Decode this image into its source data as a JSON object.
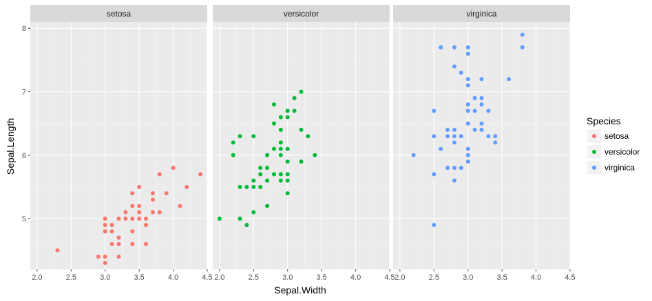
{
  "chart_data": {
    "type": "scatter",
    "facet_by": "Species",
    "xlabel": "Sepal.Width",
    "ylabel": "Sepal.Length",
    "xlim": [
      1.9,
      4.5
    ],
    "ylim": [
      4.2,
      8.1
    ],
    "x_ticks": [
      "2.0",
      "2.5",
      "3.0",
      "3.5",
      "4.0",
      "4.5"
    ],
    "x_tick_values": [
      2.0,
      2.5,
      3.0,
      3.5,
      4.0,
      4.5
    ],
    "y_ticks": [
      "5",
      "6",
      "7",
      "8"
    ],
    "y_tick_values": [
      5,
      6,
      7,
      8
    ],
    "grid": true,
    "legend": {
      "title": "Species",
      "position": "right",
      "entries": [
        {
          "label": "setosa",
          "color": "#F8766D"
        },
        {
          "label": "versicolor",
          "color": "#00BA38"
        },
        {
          "label": "virginica",
          "color": "#619CFF"
        }
      ]
    },
    "panels": [
      {
        "name": "setosa",
        "color": "#F8766D",
        "points": [
          [
            2.3,
            4.5
          ],
          [
            2.9,
            4.4
          ],
          [
            3.0,
            4.3
          ],
          [
            3.0,
            4.4
          ],
          [
            3.0,
            4.8
          ],
          [
            3.0,
            4.9
          ],
          [
            3.0,
            5.0
          ],
          [
            3.1,
            4.6
          ],
          [
            3.1,
            4.8
          ],
          [
            3.1,
            4.9
          ],
          [
            3.2,
            4.4
          ],
          [
            3.2,
            4.6
          ],
          [
            3.2,
            4.7
          ],
          [
            3.2,
            5.0
          ],
          [
            3.3,
            5.0
          ],
          [
            3.3,
            5.1
          ],
          [
            3.4,
            4.6
          ],
          [
            3.4,
            4.8
          ],
          [
            3.4,
            5.0
          ],
          [
            3.4,
            5.2
          ],
          [
            3.4,
            5.4
          ],
          [
            3.5,
            5.0
          ],
          [
            3.5,
            5.1
          ],
          [
            3.5,
            5.2
          ],
          [
            3.5,
            5.5
          ],
          [
            3.6,
            4.6
          ],
          [
            3.6,
            4.9
          ],
          [
            3.6,
            5.0
          ],
          [
            3.7,
            5.1
          ],
          [
            3.7,
            5.3
          ],
          [
            3.7,
            5.4
          ],
          [
            3.8,
            5.1
          ],
          [
            3.8,
            5.7
          ],
          [
            3.9,
            5.4
          ],
          [
            4.0,
            5.8
          ],
          [
            4.1,
            5.2
          ],
          [
            4.2,
            5.5
          ],
          [
            4.4,
            5.7
          ]
        ]
      },
      {
        "name": "versicolor",
        "color": "#00BA38",
        "points": [
          [
            2.0,
            5.0
          ],
          [
            2.2,
            6.0
          ],
          [
            2.2,
            6.2
          ],
          [
            2.3,
            5.0
          ],
          [
            2.3,
            5.5
          ],
          [
            2.3,
            6.3
          ],
          [
            2.4,
            4.9
          ],
          [
            2.4,
            5.5
          ],
          [
            2.5,
            5.1
          ],
          [
            2.5,
            5.5
          ],
          [
            2.5,
            5.6
          ],
          [
            2.5,
            6.3
          ],
          [
            2.6,
            5.5
          ],
          [
            2.6,
            5.7
          ],
          [
            2.6,
            5.8
          ],
          [
            2.7,
            5.2
          ],
          [
            2.7,
            5.6
          ],
          [
            2.7,
            5.8
          ],
          [
            2.7,
            6.0
          ],
          [
            2.8,
            5.7
          ],
          [
            2.8,
            6.1
          ],
          [
            2.8,
            6.5
          ],
          [
            2.8,
            6.8
          ],
          [
            2.9,
            5.6
          ],
          [
            2.9,
            5.7
          ],
          [
            2.9,
            6.0
          ],
          [
            2.9,
            6.1
          ],
          [
            2.9,
            6.2
          ],
          [
            2.9,
            6.4
          ],
          [
            2.9,
            6.6
          ],
          [
            3.0,
            5.4
          ],
          [
            3.0,
            5.6
          ],
          [
            3.0,
            5.7
          ],
          [
            3.0,
            5.9
          ],
          [
            3.0,
            6.1
          ],
          [
            3.0,
            6.6
          ],
          [
            3.0,
            6.7
          ],
          [
            3.1,
            6.7
          ],
          [
            3.1,
            6.9
          ],
          [
            3.2,
            5.9
          ],
          [
            3.2,
            6.4
          ],
          [
            3.2,
            7.0
          ],
          [
            3.3,
            6.3
          ],
          [
            3.4,
            6.0
          ]
        ]
      },
      {
        "name": "virginica",
        "color": "#619CFF",
        "points": [
          [
            2.2,
            6.0
          ],
          [
            2.5,
            4.9
          ],
          [
            2.5,
            5.7
          ],
          [
            2.5,
            6.3
          ],
          [
            2.5,
            6.7
          ],
          [
            2.6,
            6.1
          ],
          [
            2.6,
            7.7
          ],
          [
            2.7,
            5.8
          ],
          [
            2.7,
            6.3
          ],
          [
            2.7,
            6.4
          ],
          [
            2.8,
            5.6
          ],
          [
            2.8,
            5.8
          ],
          [
            2.8,
            6.2
          ],
          [
            2.8,
            6.3
          ],
          [
            2.8,
            6.4
          ],
          [
            2.8,
            7.4
          ],
          [
            2.8,
            7.7
          ],
          [
            2.9,
            5.8
          ],
          [
            2.9,
            6.3
          ],
          [
            2.9,
            7.3
          ],
          [
            3.0,
            5.9
          ],
          [
            3.0,
            6.0
          ],
          [
            3.0,
            6.1
          ],
          [
            3.0,
            6.5
          ],
          [
            3.0,
            6.7
          ],
          [
            3.0,
            6.8
          ],
          [
            3.0,
            7.1
          ],
          [
            3.0,
            7.2
          ],
          [
            3.0,
            7.6
          ],
          [
            3.0,
            7.7
          ],
          [
            3.1,
            6.4
          ],
          [
            3.1,
            6.7
          ],
          [
            3.1,
            6.9
          ],
          [
            3.2,
            6.4
          ],
          [
            3.2,
            6.5
          ],
          [
            3.2,
            6.8
          ],
          [
            3.2,
            6.9
          ],
          [
            3.2,
            7.2
          ],
          [
            3.3,
            6.3
          ],
          [
            3.3,
            6.7
          ],
          [
            3.4,
            6.2
          ],
          [
            3.4,
            6.3
          ],
          [
            3.6,
            7.2
          ],
          [
            3.8,
            7.7
          ],
          [
            3.8,
            7.9
          ]
        ]
      }
    ]
  }
}
